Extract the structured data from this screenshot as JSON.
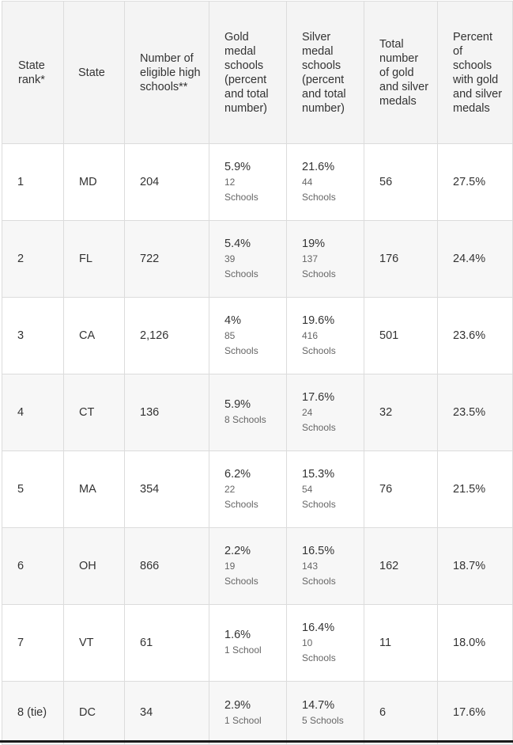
{
  "headers": [
    "State rank*",
    "State",
    "Number of eligible high schools**",
    "Gold medal schools (percent and total number)",
    "Silver medal schools (percent and total number)",
    "Total number of gold and silver medals",
    "Percent of schools with gold and silver medals"
  ],
  "rows": [
    {
      "rank": "1",
      "state": "MD",
      "eligible": "204",
      "gold_pct": "5.9%",
      "gold_count": "12 Schools",
      "silver_pct": "21.6%",
      "silver_count": "44 Schools",
      "total": "56",
      "percent": "27.5%"
    },
    {
      "rank": "2",
      "state": "FL",
      "eligible": "722",
      "gold_pct": "5.4%",
      "gold_count": "39 Schools",
      "silver_pct": "19%",
      "silver_count": "137 Schools",
      "total": "176",
      "percent": "24.4%"
    },
    {
      "rank": "3",
      "state": "CA",
      "eligible": "2,126",
      "gold_pct": "4%",
      "gold_count": "85 Schools",
      "silver_pct": "19.6%",
      "silver_count": "416 Schools",
      "total": "501",
      "percent": "23.6%"
    },
    {
      "rank": "4",
      "state": "CT",
      "eligible": "136",
      "gold_pct": "5.9%",
      "gold_count": "8 Schools",
      "silver_pct": "17.6%",
      "silver_count": "24 Schools",
      "total": "32",
      "percent": "23.5%"
    },
    {
      "rank": "5",
      "state": "MA",
      "eligible": "354",
      "gold_pct": "6.2%",
      "gold_count": "22 Schools",
      "silver_pct": "15.3%",
      "silver_count": "54 Schools",
      "total": "76",
      "percent": "21.5%"
    },
    {
      "rank": "6",
      "state": "OH",
      "eligible": "866",
      "gold_pct": "2.2%",
      "gold_count": "19 Schools",
      "silver_pct": "16.5%",
      "silver_count": "143 Schools",
      "total": "162",
      "percent": "18.7%"
    },
    {
      "rank": "7",
      "state": "VT",
      "eligible": "61",
      "gold_pct": "1.6%",
      "gold_count": "1 School",
      "silver_pct": "16.4%",
      "silver_count": "10 Schools",
      "total": "11",
      "percent": "18.0%"
    },
    {
      "rank": "8 (tie)",
      "state": "DC",
      "eligible": "34",
      "gold_pct": "2.9%",
      "gold_count": "1 School",
      "silver_pct": "14.7%",
      "silver_count": "5 Schools",
      "total": "6",
      "percent": "17.6%"
    }
  ]
}
